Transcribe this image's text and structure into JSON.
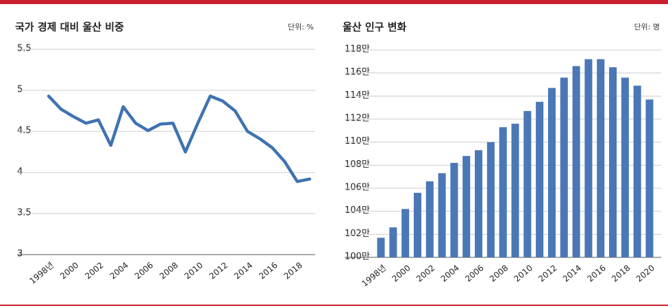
{
  "chart_data": [
    {
      "type": "line",
      "title": "국가 경제 대비 울산 비중",
      "unit": "단위: %",
      "color": "#3f73b0",
      "categories": [
        "1998년",
        null,
        "2000",
        null,
        "2002",
        null,
        "2004",
        null,
        "2006",
        null,
        "2008",
        null,
        "2010",
        null,
        "2012",
        null,
        "2014",
        null,
        "2016",
        null,
        "2018",
        null
      ],
      "values": [
        4.93,
        4.77,
        4.68,
        4.6,
        4.64,
        4.33,
        4.8,
        4.6,
        4.51,
        4.59,
        4.6,
        4.25,
        4.6,
        4.93,
        4.87,
        4.75,
        4.5,
        4.41,
        4.3,
        4.13,
        3.89,
        3.92
      ],
      "ylim": [
        3,
        5.5
      ],
      "yticks": [
        3,
        3.5,
        4,
        4.5,
        5,
        5.5
      ],
      "grid": true
    },
    {
      "type": "bar",
      "title": "울산 인구 변화",
      "unit": "단위: 명",
      "color": "#4a77b6",
      "categories": [
        "1998년",
        null,
        "2000",
        null,
        "2002",
        null,
        "2004",
        null,
        "2006",
        null,
        "2008",
        null,
        "2010",
        null,
        "2012",
        null,
        "2014",
        null,
        "2016",
        null,
        "2018",
        null,
        "2020"
      ],
      "values": [
        101.7,
        102.6,
        104.2,
        105.6,
        106.6,
        107.3,
        108.2,
        108.8,
        109.3,
        110.0,
        111.3,
        111.6,
        112.7,
        113.5,
        114.7,
        115.6,
        116.6,
        117.2,
        117.2,
        116.5,
        115.6,
        114.9,
        113.7
      ],
      "ylim": [
        100,
        118
      ],
      "yticks": [
        {
          "value": 100,
          "label": "100만"
        },
        {
          "value": 102,
          "label": "102만"
        },
        {
          "value": 104,
          "label": "104만"
        },
        {
          "value": 106,
          "label": "106만"
        },
        {
          "value": 108,
          "label": "108만"
        },
        {
          "value": 110,
          "label": "110만"
        },
        {
          "value": 112,
          "label": "112만"
        },
        {
          "value": 114,
          "label": "114만"
        },
        {
          "value": 116,
          "label": "116만"
        },
        {
          "value": 118,
          "label": "118만"
        }
      ],
      "grid": true
    }
  ]
}
